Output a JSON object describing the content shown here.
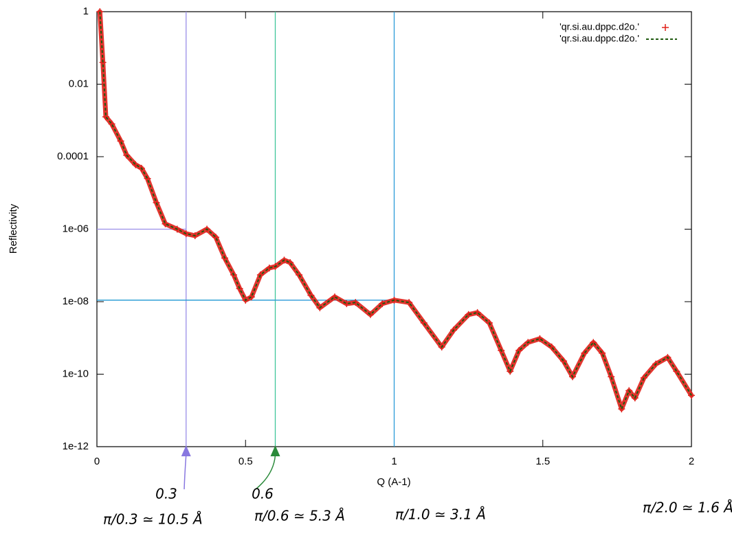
{
  "chart_data": {
    "type": "line",
    "xlabel": "Q (A-1)",
    "ylabel": "Reflectivity",
    "log_y": true,
    "legend": "top-right",
    "xlim": [
      0,
      2
    ],
    "xticks": [
      0,
      0.5,
      1,
      1.5,
      2
    ],
    "ylim": [
      1e-12,
      1
    ],
    "yticks": [
      {
        "value": 1,
        "label": "1"
      },
      {
        "value": 0.01,
        "label": "0.01"
      },
      {
        "value": 0.0001,
        "label": "0.0001"
      },
      {
        "value": 1e-06,
        "label": "1e-06"
      },
      {
        "value": 1e-08,
        "label": "1e-08"
      },
      {
        "value": 1e-10,
        "label": "1e-10"
      },
      {
        "value": 1e-12,
        "label": "1e-12"
      }
    ],
    "x": [
      0.01,
      0.02,
      0.03,
      0.05,
      0.08,
      0.1,
      0.13,
      0.15,
      0.17,
      0.2,
      0.23,
      0.27,
      0.3,
      0.33,
      0.37,
      0.4,
      0.43,
      0.46,
      0.48,
      0.5,
      0.52,
      0.55,
      0.58,
      0.6,
      0.63,
      0.65,
      0.68,
      0.72,
      0.75,
      0.8,
      0.84,
      0.87,
      0.92,
      0.96,
      1.0,
      1.05,
      1.1,
      1.16,
      1.2,
      1.25,
      1.28,
      1.32,
      1.36,
      1.39,
      1.42,
      1.45,
      1.49,
      1.53,
      1.57,
      1.6,
      1.64,
      1.67,
      1.7,
      1.73,
      1.765,
      1.79,
      1.81,
      1.84,
      1.88,
      1.92,
      1.95,
      2.0
    ],
    "series": [
      {
        "name": "'qr.si.au.dppc.d2o.'",
        "color": "#e0201a",
        "style": "points",
        "values": [
          1,
          0.04,
          0.00126,
          0.0008,
          0.00027,
          0.00011,
          6e-05,
          4.8e-05,
          2.5e-05,
          5.4e-06,
          1.4e-06,
          1e-06,
          7.5e-07,
          6.6e-07,
          1e-06,
          6e-07,
          1.6e-07,
          5.5e-08,
          2.3e-08,
          1.1e-08,
          1.35e-08,
          5.5e-08,
          8.5e-08,
          9.3e-08,
          1.4e-07,
          1.2e-07,
          5.5e-08,
          1.5e-08,
          6.8e-09,
          1.35e-08,
          8.8e-09,
          9.5e-09,
          4.4e-09,
          8.8e-09,
          1.1e-08,
          9.5e-09,
          2.6e-09,
          5.6e-10,
          1.65e-09,
          4.4e-09,
          5e-09,
          2.6e-09,
          4.5e-10,
          1.2e-10,
          4.5e-10,
          7.5e-10,
          9.5e-10,
          5.6e-10,
          2.3e-10,
          8.5e-11,
          3.8e-10,
          7.5e-10,
          3.8e-10,
          8.5e-11,
          1.1e-11,
          3.5e-11,
          2.2e-11,
          7.9e-11,
          1.9e-10,
          2.9e-10,
          1.2e-10,
          2.6e-11
        ]
      },
      {
        "name": "'qr.si.au.dppc.d2o.'",
        "color": "#1f5a10",
        "style": "dashed",
        "values": [
          1,
          0.04,
          0.00126,
          0.0008,
          0.00027,
          0.00011,
          6e-05,
          4.8e-05,
          2.5e-05,
          5.4e-06,
          1.4e-06,
          1e-06,
          7.5e-07,
          6.6e-07,
          1e-06,
          6e-07,
          1.6e-07,
          5.5e-08,
          2.3e-08,
          1.1e-08,
          1.35e-08,
          5.5e-08,
          8.5e-08,
          9.3e-08,
          1.4e-07,
          1.2e-07,
          5.5e-08,
          1.5e-08,
          6.8e-09,
          1.35e-08,
          8.8e-09,
          9.5e-09,
          4.4e-09,
          8.8e-09,
          1.1e-08,
          9.5e-09,
          2.6e-09,
          5.6e-10,
          1.65e-09,
          4.4e-09,
          5e-09,
          2.6e-09,
          4.5e-10,
          1.2e-10,
          4.5e-10,
          7.5e-10,
          9.5e-10,
          5.6e-10,
          2.3e-10,
          8.5e-11,
          3.8e-10,
          7.5e-10,
          3.8e-10,
          8.5e-11,
          1.1e-11,
          3.5e-11,
          2.2e-11,
          7.9e-11,
          1.9e-10,
          2.9e-10,
          1.2e-10,
          2.6e-11
        ]
      }
    ],
    "vlines": [
      {
        "x": 0.3,
        "color": "#9a8ee8"
      },
      {
        "x": 0.6,
        "color": "#3fc79a"
      },
      {
        "x": 1,
        "color": "#2a9ad8"
      }
    ],
    "hlines": [
      {
        "y": 1e-06,
        "xmax": 0.3,
        "color": "#9a8ee8"
      },
      {
        "y": 1.1e-08,
        "xmax": 0.6,
        "color": "#3fc79a"
      },
      {
        "y": 1.1e-08,
        "xmax": 1,
        "color": "#2a9ad8"
      }
    ],
    "annotations": [
      {
        "text": "0.3",
        "color": "#8877e0"
      },
      {
        "text": "0.6",
        "color": "#2a8a3a"
      },
      {
        "text": "π/0.3 ≃ 10.5 Å",
        "color": "#111111"
      },
      {
        "text": "π/0.6 ≃ 5.3 Å",
        "color": "#111111"
      },
      {
        "text": "π/1.0 ≃ 3.1 Å",
        "color": "#111111"
      },
      {
        "text": "π/2.0 ≃ 1.6 Å",
        "color": "#111111"
      }
    ]
  }
}
